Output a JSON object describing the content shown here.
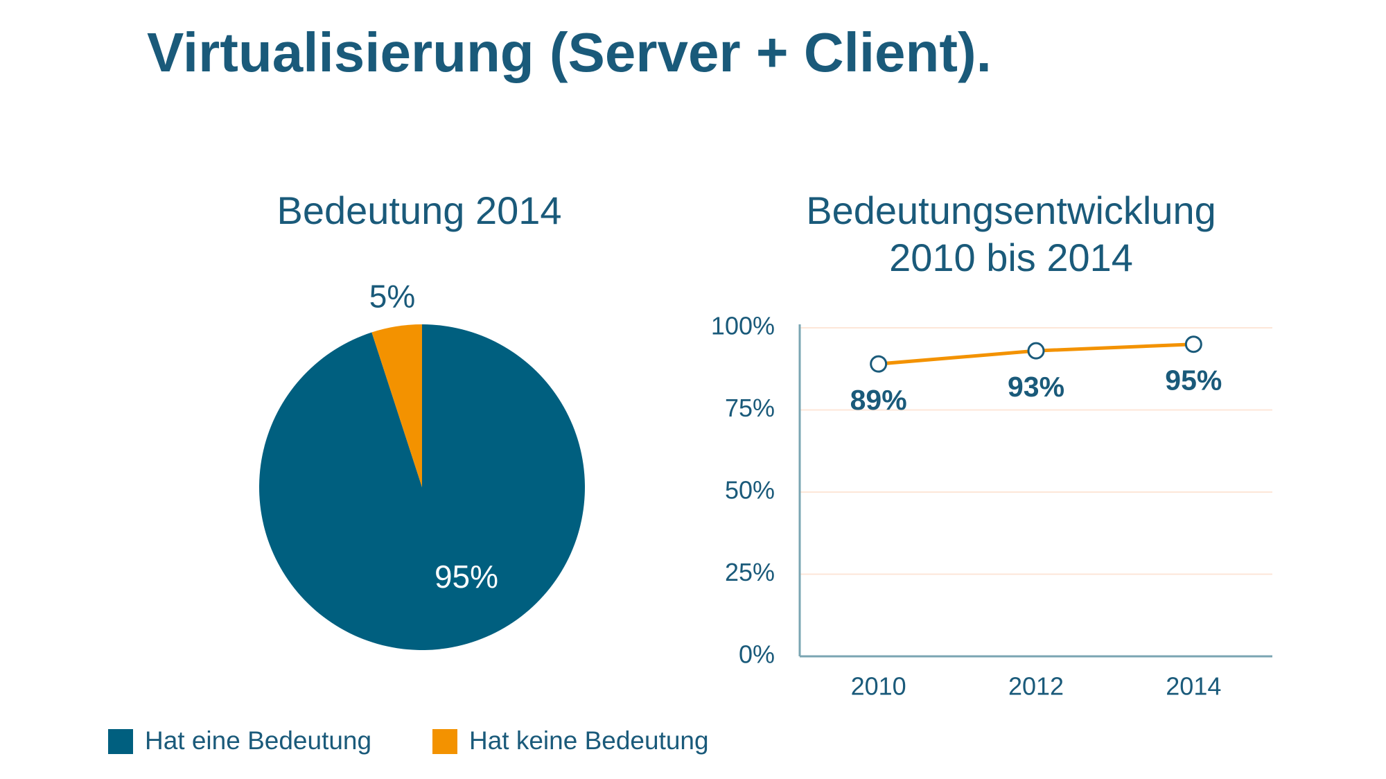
{
  "title": "Virtualisierung (Server + Client).",
  "chart_data": [
    {
      "type": "pie",
      "title": "Bedeutung 2014",
      "categories": [
        "Hat eine Bedeutung",
        "Hat keine Bedeutung"
      ],
      "values": [
        95,
        5
      ],
      "value_labels": [
        "95%",
        "5%"
      ],
      "colors": [
        "#005f7f",
        "#f39200"
      ],
      "legend": "bottom"
    },
    {
      "type": "line",
      "title": "Bedeutungsentwicklung 2010 bis 2014",
      "categories": [
        "2010",
        "2012",
        "2014"
      ],
      "values": [
        89,
        93,
        95
      ],
      "value_labels": [
        "89%",
        "93%",
        "95%"
      ],
      "color": "#f39200",
      "ylim": [
        0,
        100
      ],
      "yticks": [
        {
          "value": 0,
          "label": "0%"
        },
        {
          "value": 25,
          "label": "25%"
        },
        {
          "value": 50,
          "label": "50%"
        },
        {
          "value": 75,
          "label": "75%"
        },
        {
          "value": 100,
          "label": "100%"
        }
      ],
      "grid": true
    }
  ]
}
